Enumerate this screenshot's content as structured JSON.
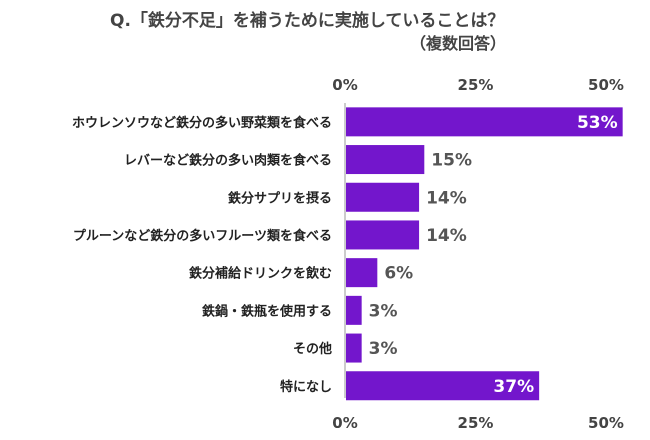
{
  "chart_data": {
    "type": "bar",
    "orientation": "horizontal",
    "title": "Q.「鉄分不足」を補うために実施していることは？",
    "subtitle": "（複数回答）",
    "categories": [
      "ホウレンソウなど鉄分の多い野菜類を食べる",
      "レバーなど鉄分の多い肉類を食べる",
      "鉄分サプリを摂る",
      "プルーンなど鉄分の多いフルーツ類を食べる",
      "鉄分補給ドリンクを飲む",
      "鉄鍋・鉄瓶を使用する",
      "その他",
      "特になし"
    ],
    "values": [
      53,
      15,
      14,
      14,
      6,
      3,
      3,
      37
    ],
    "value_labels": [
      "53%",
      "15%",
      "14%",
      "14%",
      "6%",
      "3%",
      "3%",
      "37%"
    ],
    "xlim": [
      0,
      50
    ],
    "ticks": [
      0,
      25,
      50
    ],
    "tick_labels": [
      "0%",
      "25%",
      "50%"
    ],
    "bar_color": "#7316cc",
    "grid": false
  }
}
